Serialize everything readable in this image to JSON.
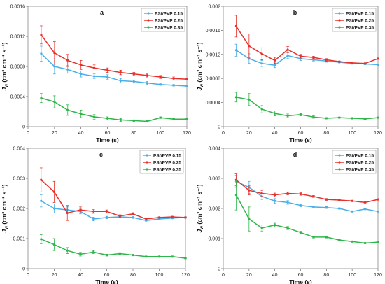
{
  "chart_data": [
    {
      "type": "line",
      "panel_label": "a",
      "xlabel": "Time (s)",
      "ylabel": "J_w (cm³ cm⁻² s⁻¹)",
      "xlim": [
        0,
        120
      ],
      "ylim": [
        0,
        0.0016
      ],
      "xticks": [
        "0",
        "20",
        "40",
        "60",
        "80",
        "100",
        "120"
      ],
      "yticks": [
        "0",
        "0.0004",
        "0.0008",
        "0.0012",
        "0.0016"
      ],
      "ytick_values": [
        0,
        0.0004,
        0.0008,
        0.0012,
        0.0016
      ],
      "legend_position": "top-right",
      "series": [
        {
          "name": "PSf/PVP 0.15",
          "color": "#4aaee8",
          "x": [
            10,
            20,
            30,
            40,
            50,
            60,
            70,
            80,
            90,
            100,
            110,
            120
          ],
          "y": [
            0.00097,
            0.0008,
            0.00076,
            0.0007,
            0.00067,
            0.00066,
            0.00061,
            0.0006,
            0.00058,
            0.00056,
            0.00055,
            0.00054
          ],
          "err": [
            0.0001,
            0.0001,
            5e-05,
            4e-05,
            3e-05,
            3e-05,
            3e-05,
            2e-05,
            2e-05,
            1e-05,
            1e-05,
            1e-05
          ]
        },
        {
          "name": "PSf/PVP 0.25",
          "color": "#e8302a",
          "x": [
            10,
            20,
            30,
            40,
            50,
            60,
            70,
            80,
            90,
            100,
            110,
            120
          ],
          "y": [
            0.00122,
            0.00098,
            0.00088,
            0.00082,
            0.00078,
            0.00075,
            0.00072,
            0.0007,
            0.00068,
            0.00066,
            0.00064,
            0.00063
          ],
          "err": [
            0.00012,
            0.00015,
            8e-05,
            6e-05,
            4e-05,
            3e-05,
            3e-05,
            2e-05,
            2e-05,
            2e-05,
            2e-05,
            1e-05
          ]
        },
        {
          "name": "PSf/PVP 0.35",
          "color": "#2fb64a",
          "x": [
            10,
            20,
            30,
            40,
            50,
            60,
            70,
            80,
            90,
            100,
            110,
            120
          ],
          "y": [
            0.00038,
            0.00033,
            0.00022,
            0.00017,
            0.00013,
            0.00011,
            9e-05,
            8e-05,
            7e-05,
            0.00012,
            0.0001,
            0.0001
          ],
          "err": [
            6e-05,
            8e-05,
            7e-05,
            5e-05,
            3e-05,
            2e-05,
            2e-05,
            1e-05,
            1e-05,
            1e-05,
            1e-05,
            1e-05
          ]
        }
      ]
    },
    {
      "type": "line",
      "panel_label": "b",
      "xlabel": "Time (s)",
      "ylabel": "J_w (cm³ cm⁻² s⁻¹)",
      "xlim": [
        0,
        120
      ],
      "ylim": [
        0,
        0.002
      ],
      "xticks": [
        "0",
        "20",
        "40",
        "60",
        "80",
        "100",
        "120"
      ],
      "yticks": [
        "0",
        "0.0004",
        "0.0008",
        "0.0012",
        "0.0016",
        "0.002"
      ],
      "ytick_values": [
        0,
        0.0004,
        0.0008,
        0.0012,
        0.0016,
        0.002
      ],
      "legend_position": "top-right",
      "series": [
        {
          "name": "PSf/PVP 0.15",
          "color": "#4aaee8",
          "x": [
            10,
            20,
            30,
            40,
            50,
            60,
            70,
            80,
            90,
            100,
            110,
            120
          ],
          "y": [
            0.00127,
            0.00113,
            0.00105,
            0.00102,
            0.00118,
            0.00113,
            0.00111,
            0.00109,
            0.00107,
            0.00105,
            0.00104,
            0.00103
          ],
          "err": [
            0.0001,
            8e-05,
            5e-05,
            4e-05,
            5e-05,
            3e-05,
            2e-05,
            2e-05,
            1e-05,
            1e-05,
            1e-05,
            1e-05
          ]
        },
        {
          "name": "PSf/PVP 0.25",
          "color": "#e8302a",
          "x": [
            10,
            20,
            30,
            40,
            50,
            60,
            70,
            80,
            90,
            100,
            110,
            120
          ],
          "y": [
            0.00167,
            0.00134,
            0.00121,
            0.0011,
            0.00128,
            0.00117,
            0.00115,
            0.00111,
            0.00108,
            0.00106,
            0.00105,
            0.00113
          ],
          "err": [
            0.00018,
            0.0002,
            0.0001,
            5e-05,
            5e-05,
            3e-05,
            2e-05,
            2e-05,
            1e-05,
            1e-05,
            1e-05,
            1e-05
          ]
        },
        {
          "name": "PSf/PVP 0.35",
          "color": "#2fb64a",
          "x": [
            10,
            20,
            30,
            40,
            50,
            60,
            70,
            80,
            90,
            100,
            110,
            120
          ],
          "y": [
            0.00049,
            0.00045,
            0.00029,
            0.00022,
            0.00018,
            0.0002,
            0.00016,
            0.00014,
            0.00015,
            0.00014,
            0.00013,
            0.00015
          ],
          "err": [
            8e-05,
            0.0001,
            6e-05,
            4e-05,
            3e-05,
            2e-05,
            2e-05,
            1e-05,
            1e-05,
            1e-05,
            1e-05,
            1e-05
          ]
        }
      ]
    },
    {
      "type": "line",
      "panel_label": "c",
      "xlabel": "Time (s)",
      "ylabel": "J_w (cm³ cm⁻² s⁻¹)",
      "xlim": [
        0,
        120
      ],
      "ylim": [
        0,
        0.004
      ],
      "xticks": [
        "0",
        "20",
        "40",
        "60",
        "80",
        "100",
        "120"
      ],
      "yticks": [
        "0",
        "0.001",
        "0.002",
        "0.003",
        "0.004"
      ],
      "ytick_values": [
        0,
        0.001,
        0.002,
        0.003,
        0.004
      ],
      "legend_position": "top-right",
      "series": [
        {
          "name": "PSf/PVP 0.15",
          "color": "#4aaee8",
          "x": [
            10,
            20,
            30,
            40,
            50,
            60,
            70,
            80,
            90,
            100,
            110,
            120
          ],
          "y": [
            0.00225,
            0.002,
            0.00195,
            0.0019,
            0.00165,
            0.0017,
            0.00172,
            0.0017,
            0.0016,
            0.00165,
            0.00168,
            0.0017
          ],
          "err": [
            0.0002,
            0.00015,
            0.0001,
            8e-05,
            6e-05,
            4e-05,
            3e-05,
            3e-05,
            2e-05,
            2e-05,
            2e-05,
            2e-05
          ]
        },
        {
          "name": "PSf/PVP 0.25",
          "color": "#e8302a",
          "x": [
            10,
            20,
            30,
            40,
            50,
            60,
            70,
            80,
            90,
            100,
            110,
            120
          ],
          "y": [
            0.00295,
            0.00255,
            0.00185,
            0.00195,
            0.0019,
            0.0019,
            0.00175,
            0.00182,
            0.00165,
            0.0017,
            0.00172,
            0.0017
          ],
          "err": [
            0.0004,
            0.00035,
            0.00025,
            0.0001,
            6e-05,
            5e-05,
            4e-05,
            4e-05,
            3e-05,
            2e-05,
            2e-05,
            2e-05
          ]
        },
        {
          "name": "PSf/PVP 0.35",
          "color": "#2fb64a",
          "x": [
            10,
            20,
            30,
            40,
            50,
            60,
            70,
            80,
            90,
            100,
            110,
            120
          ],
          "y": [
            0.00098,
            0.0008,
            0.0006,
            0.00048,
            0.00055,
            0.00045,
            0.0005,
            0.00045,
            0.0004,
            0.0004,
            0.0004,
            0.00035
          ],
          "err": [
            0.00015,
            0.0002,
            0.0001,
            6e-05,
            5e-05,
            3e-05,
            3e-05,
            2e-05,
            2e-05,
            2e-05,
            2e-05,
            2e-05
          ]
        }
      ]
    },
    {
      "type": "line",
      "panel_label": "d",
      "xlabel": "Time (s)",
      "ylabel": "J_w (cm³ cm⁻² s⁻¹)",
      "xlim": [
        0,
        120
      ],
      "ylim": [
        0,
        0.004
      ],
      "xticks": [
        "0",
        "20",
        "40",
        "60",
        "80",
        "100",
        "120"
      ],
      "yticks": [
        "0",
        "0.001",
        "0.002",
        "0.003",
        "0.004"
      ],
      "ytick_values": [
        0,
        0.001,
        0.002,
        0.003,
        0.004
      ],
      "legend_position": "top-right",
      "series": [
        {
          "name": "PSf/PVP 0.15",
          "color": "#4aaee8",
          "x": [
            10,
            20,
            30,
            40,
            50,
            60,
            70,
            80,
            90,
            100,
            110,
            120
          ],
          "y": [
            0.0029,
            0.0027,
            0.0024,
            0.00225,
            0.0022,
            0.0021,
            0.00205,
            0.00203,
            0.002,
            0.0019,
            0.00198,
            0.0019
          ],
          "err": [
            0.0002,
            0.0002,
            0.0001,
            8e-05,
            6e-05,
            4e-05,
            3e-05,
            3e-05,
            2e-05,
            2e-05,
            2e-05,
            2e-05
          ]
        },
        {
          "name": "PSf/PVP 0.25",
          "color": "#e8302a",
          "x": [
            10,
            20,
            30,
            40,
            50,
            60,
            70,
            80,
            90,
            100,
            110,
            120
          ],
          "y": [
            0.00295,
            0.0026,
            0.0025,
            0.00245,
            0.0025,
            0.00248,
            0.0024,
            0.0023,
            0.00228,
            0.00225,
            0.0022,
            0.0023
          ],
          "err": [
            0.0002,
            0.00015,
            0.0001,
            6e-05,
            5e-05,
            4e-05,
            3e-05,
            3e-05,
            2e-05,
            2e-05,
            2e-05,
            2e-05
          ]
        },
        {
          "name": "PSf/PVP 0.35",
          "color": "#2fb64a",
          "x": [
            10,
            20,
            30,
            40,
            50,
            60,
            70,
            80,
            90,
            100,
            110,
            120
          ],
          "y": [
            0.00245,
            0.00165,
            0.00135,
            0.00145,
            0.00135,
            0.0012,
            0.00105,
            0.00105,
            0.00095,
            0.0009,
            0.00085,
            0.00088
          ],
          "err": [
            0.0005,
            0.0004,
            0.0001,
            6e-05,
            5e-05,
            4e-05,
            3e-05,
            3e-05,
            2e-05,
            2e-05,
            2e-05,
            2e-05
          ]
        }
      ]
    }
  ]
}
